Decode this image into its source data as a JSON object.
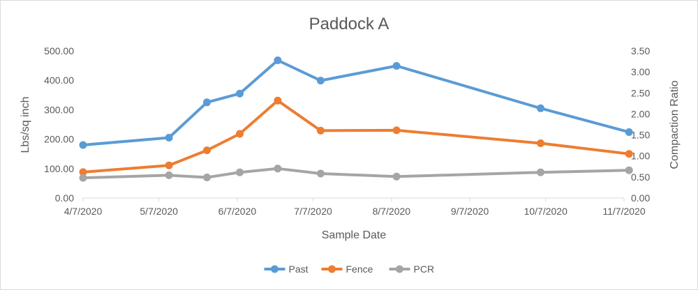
{
  "chart_data": {
    "type": "line",
    "title": "Paddock A",
    "xlabel": "Sample Date",
    "ylabel": "Lbs/sq inch",
    "y2label": "Compaction Ratio",
    "xlim": [
      "4/7/2020",
      "11/7/2020"
    ],
    "x_ticks": [
      "4/7/2020",
      "5/7/2020",
      "6/7/2020",
      "7/7/2020",
      "8/7/2020",
      "9/7/2020",
      "10/7/2020",
      "11/7/2020"
    ],
    "ylim": [
      0,
      500
    ],
    "y_ticks": [
      "0.00",
      "100.00",
      "200.00",
      "300.00",
      "400.00",
      "500.00"
    ],
    "y2lim": [
      0,
      3.5
    ],
    "y2_ticks": [
      "0.00",
      "0.50",
      "1.00",
      "1.50",
      "2.00",
      "2.50",
      "3.00",
      "3.50"
    ],
    "grid": false,
    "legend_position": "bottom",
    "x": [
      "4/7/2020",
      "5/11/2020",
      "5/26/2020",
      "6/8/2020",
      "6/23/2020",
      "7/10/2020",
      "8/9/2020",
      "10/5/2020",
      "11/9/2020"
    ],
    "series": [
      {
        "name": "Past",
        "color": "#5b9bd5",
        "axis": "left",
        "values": [
          180,
          205,
          325,
          355,
          468,
          399,
          449,
          305,
          224
        ]
      },
      {
        "name": "Fence",
        "color": "#ed7d31",
        "axis": "left",
        "values": [
          88,
          111,
          162,
          218,
          331,
          229,
          230,
          186,
          150
        ]
      },
      {
        "name": "PCR",
        "color": "#a5a5a5",
        "axis": "right",
        "values": [
          0.48,
          0.54,
          0.49,
          0.61,
          0.7,
          0.58,
          0.51,
          0.61,
          0.66
        ]
      }
    ]
  }
}
